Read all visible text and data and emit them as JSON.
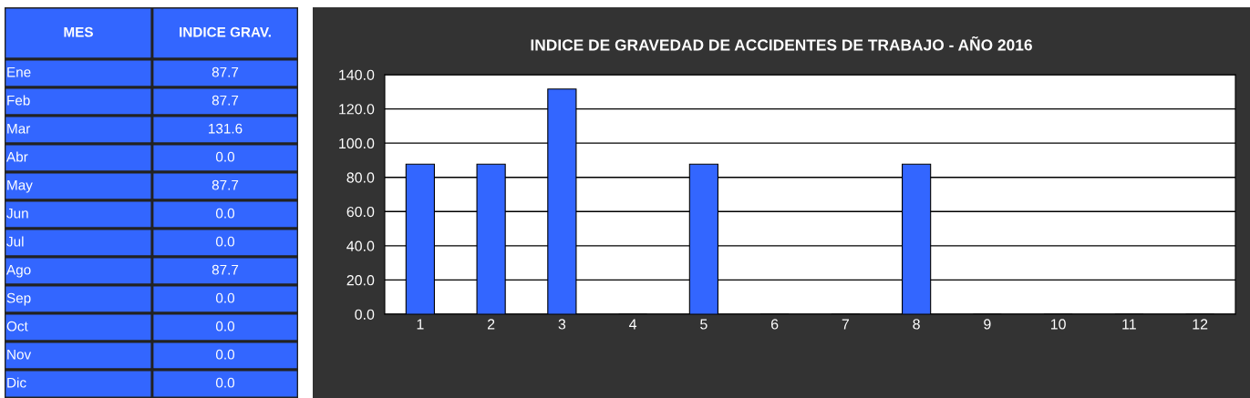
{
  "chart_data": [
    {
      "type": "other",
      "annotations": [
        "MES",
        "INDICE GRAV."
      ],
      "categories": [
        "Ene",
        "Feb",
        "Mar",
        "Abr",
        "May",
        "Jun",
        "Jul",
        "Ago",
        "Sep",
        "Oct",
        "Nov",
        "Dic"
      ],
      "values": [
        87.7,
        87.7,
        131.6,
        0.0,
        87.7,
        0.0,
        0.0,
        87.7,
        0.0,
        0.0,
        0.0,
        0.0
      ],
      "color": "#3366ff",
      "value_labels": [
        "87.7",
        "87.7",
        "131.6",
        "0.0",
        "87.7",
        "0.0",
        "0.0",
        "87.7",
        "0.0",
        "0.0",
        "0.0",
        "0.0"
      ]
    },
    {
      "type": "bar",
      "title": "INDICE DE GRAVEDAD DE ACCIDENTES DE TRABAJO - AÑO 2016",
      "categories": [
        "1",
        "2",
        "3",
        "4",
        "5",
        "6",
        "7",
        "8",
        "9",
        "10",
        "11",
        "12"
      ],
      "values": [
        87.7,
        87.7,
        131.6,
        0.0,
        87.7,
        0.0,
        0.0,
        87.7,
        0.0,
        0.0,
        0.0,
        0.0
      ],
      "color": "#3366ff",
      "ylim": [
        0,
        140
      ],
      "yticks": [
        {
          "value": 0,
          "label": "0.0"
        },
        {
          "value": 20,
          "label": "20.0"
        },
        {
          "value": 40,
          "label": "40.0"
        },
        {
          "value": 60,
          "label": "60.0"
        },
        {
          "value": 80,
          "label": "80.0"
        },
        {
          "value": 100,
          "label": "100.0"
        },
        {
          "value": 120,
          "label": "120.0"
        },
        {
          "value": 140,
          "label": "140.0"
        }
      ],
      "grid": "y",
      "legend": false
    }
  ]
}
